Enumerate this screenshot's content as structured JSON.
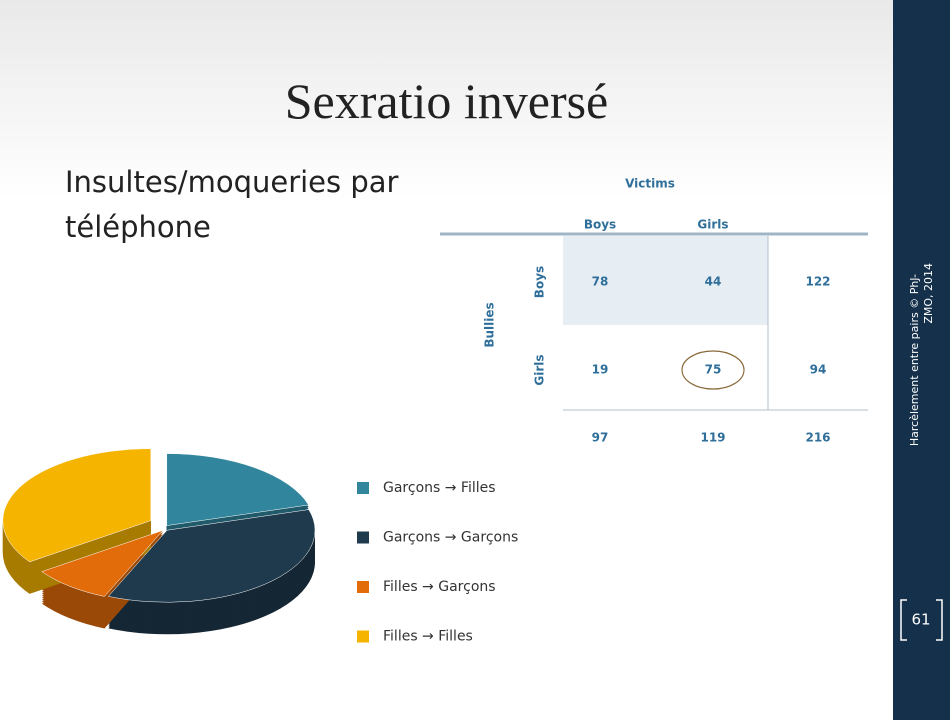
{
  "title": "Sexratio inversé",
  "subtitle": "Insultes/moqueries par téléphone",
  "table": {
    "title": "Victims",
    "row_group": "Bullies",
    "columns": [
      "Boys",
      "Girls"
    ],
    "rows": [
      {
        "label": "Boys",
        "cells": [
          78,
          44,
          122
        ]
      },
      {
        "label": "Girls",
        "cells": [
          19,
          75,
          94
        ]
      }
    ],
    "totals": [
      97,
      119,
      216
    ]
  },
  "chart_data": {
    "type": "pie",
    "labels": [
      "Garçons → Filles",
      "Garçons → Garçons",
      "Filles → Garçons",
      "Filles → Filles"
    ],
    "values": [
      44,
      78,
      19,
      75
    ],
    "colors": [
      "#31859c",
      "#1f3a4d",
      "#e36c0a",
      "#f5b400"
    ],
    "legend": "right"
  },
  "sidebar": {
    "credit_lines": [
      "Harcèlement entre pairs © PhJ-",
      "ZMO, 2014"
    ],
    "slide_number": "61"
  }
}
